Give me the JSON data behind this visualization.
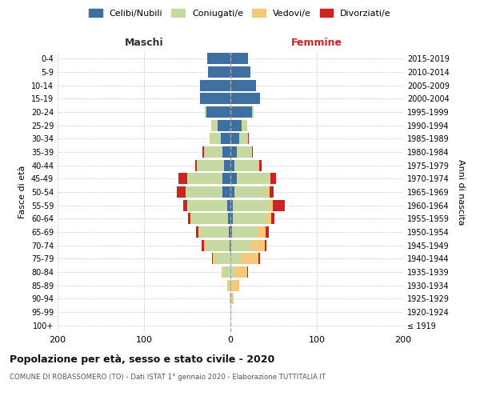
{
  "age_groups": [
    "100+",
    "95-99",
    "90-94",
    "85-89",
    "80-84",
    "75-79",
    "70-74",
    "65-69",
    "60-64",
    "55-59",
    "50-54",
    "45-49",
    "40-44",
    "35-39",
    "30-34",
    "25-29",
    "20-24",
    "15-19",
    "10-14",
    "5-9",
    "0-4"
  ],
  "birth_years": [
    "≤ 1919",
    "1920-1924",
    "1925-1929",
    "1930-1934",
    "1935-1939",
    "1940-1944",
    "1945-1949",
    "1950-1954",
    "1955-1959",
    "1960-1964",
    "1965-1969",
    "1970-1974",
    "1975-1979",
    "1980-1984",
    "1985-1989",
    "1990-1994",
    "1995-1999",
    "2000-2004",
    "2005-2009",
    "2010-2014",
    "2015-2019"
  ],
  "males": {
    "celibi": [
      0,
      0,
      0,
      0,
      0,
      0,
      1,
      2,
      3,
      4,
      9,
      9,
      7,
      9,
      11,
      15,
      28,
      35,
      35,
      26,
      27
    ],
    "coniugati": [
      0,
      0,
      1,
      3,
      8,
      17,
      27,
      34,
      42,
      46,
      43,
      41,
      32,
      22,
      13,
      7,
      2,
      0,
      0,
      0,
      0
    ],
    "vedovi": [
      0,
      0,
      0,
      1,
      2,
      3,
      3,
      1,
      1,
      0,
      0,
      0,
      0,
      0,
      0,
      0,
      0,
      0,
      0,
      0,
      0
    ],
    "divorziati": [
      0,
      0,
      0,
      0,
      0,
      1,
      2,
      3,
      3,
      5,
      10,
      10,
      2,
      1,
      0,
      0,
      0,
      0,
      0,
      0,
      0
    ]
  },
  "females": {
    "nubili": [
      0,
      0,
      0,
      0,
      0,
      0,
      1,
      2,
      3,
      3,
      5,
      7,
      5,
      7,
      10,
      13,
      25,
      34,
      30,
      23,
      20
    ],
    "coniugate": [
      0,
      0,
      1,
      2,
      5,
      13,
      22,
      29,
      39,
      43,
      38,
      38,
      28,
      18,
      10,
      6,
      2,
      0,
      0,
      0,
      0
    ],
    "vedove": [
      0,
      1,
      3,
      8,
      14,
      19,
      17,
      10,
      5,
      3,
      2,
      1,
      0,
      0,
      0,
      0,
      0,
      0,
      0,
      0,
      0
    ],
    "divorziate": [
      0,
      0,
      0,
      0,
      1,
      2,
      2,
      3,
      4,
      14,
      5,
      7,
      3,
      1,
      1,
      0,
      0,
      0,
      0,
      0,
      0
    ]
  },
  "colors": {
    "celibi": "#3d6fa0",
    "coniugati": "#c5d9a0",
    "vedovi": "#f5c97a",
    "divorziati": "#cc2222"
  },
  "title": "Popolazione per età, sesso e stato civile - 2020",
  "subtitle": "COMUNE DI ROBASSOMERO (TO) - Dati ISTAT 1° gennaio 2020 - Elaborazione TUTTITALIA.IT",
  "xlim": 200,
  "legend_labels": [
    "Celibi/Nubili",
    "Coniugati/e",
    "Vedovi/e",
    "Divorziati/e"
  ],
  "maschi_label": "Maschi",
  "femmine_label": "Femmine",
  "fasce_label": "Fasce di età",
  "anni_label": "Anni di nascita"
}
